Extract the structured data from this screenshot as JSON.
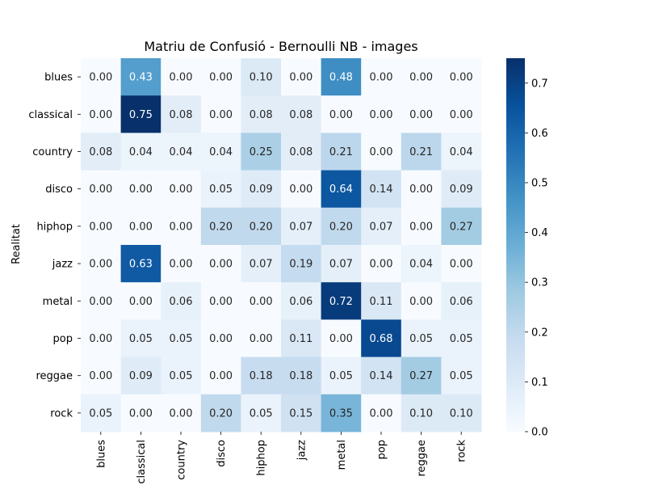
{
  "chart_data": {
    "type": "heatmap",
    "title": "Matriu de Confusió - Bernoulli NB - images",
    "ylabel": "Realitat",
    "xlabel": "",
    "rows": [
      "blues",
      "classical",
      "country",
      "disco",
      "hiphop",
      "jazz",
      "metal",
      "pop",
      "reggae",
      "rock"
    ],
    "columns": [
      "blues",
      "classical",
      "country",
      "disco",
      "hiphop",
      "jazz",
      "metal",
      "pop",
      "reggae",
      "rock"
    ],
    "values": [
      [
        0.0,
        0.43,
        0.0,
        0.0,
        0.1,
        0.0,
        0.48,
        0.0,
        0.0,
        0.0
      ],
      [
        0.0,
        0.75,
        0.08,
        0.0,
        0.08,
        0.08,
        0.0,
        0.0,
        0.0,
        0.0
      ],
      [
        0.08,
        0.04,
        0.04,
        0.04,
        0.25,
        0.08,
        0.21,
        0.0,
        0.21,
        0.04
      ],
      [
        0.0,
        0.0,
        0.0,
        0.05,
        0.09,
        0.0,
        0.64,
        0.14,
        0.0,
        0.09
      ],
      [
        0.0,
        0.0,
        0.0,
        0.2,
        0.2,
        0.07,
        0.2,
        0.07,
        0.0,
        0.27
      ],
      [
        0.0,
        0.63,
        0.0,
        0.0,
        0.07,
        0.19,
        0.07,
        0.0,
        0.04,
        0.0
      ],
      [
        0.0,
        0.0,
        0.06,
        0.0,
        0.0,
        0.06,
        0.72,
        0.11,
        0.0,
        0.06
      ],
      [
        0.0,
        0.05,
        0.05,
        0.0,
        0.0,
        0.11,
        0.0,
        0.68,
        0.05,
        0.05
      ],
      [
        0.0,
        0.09,
        0.05,
        0.0,
        0.18,
        0.18,
        0.05,
        0.14,
        0.27,
        0.05
      ],
      [
        0.05,
        0.0,
        0.0,
        0.2,
        0.05,
        0.15,
        0.35,
        0.0,
        0.1,
        0.1
      ]
    ],
    "value_format": "0.00",
    "colormap": "Blues",
    "colorbar": {
      "range": [
        0,
        0.75
      ],
      "ticks": [
        0.0,
        0.1,
        0.2,
        0.3,
        0.4,
        0.5,
        0.6,
        0.7
      ],
      "tick_labels": [
        "0.0",
        "0.1",
        "0.2",
        "0.3",
        "0.4",
        "0.5",
        "0.6",
        "0.7"
      ]
    },
    "grid": false
  }
}
